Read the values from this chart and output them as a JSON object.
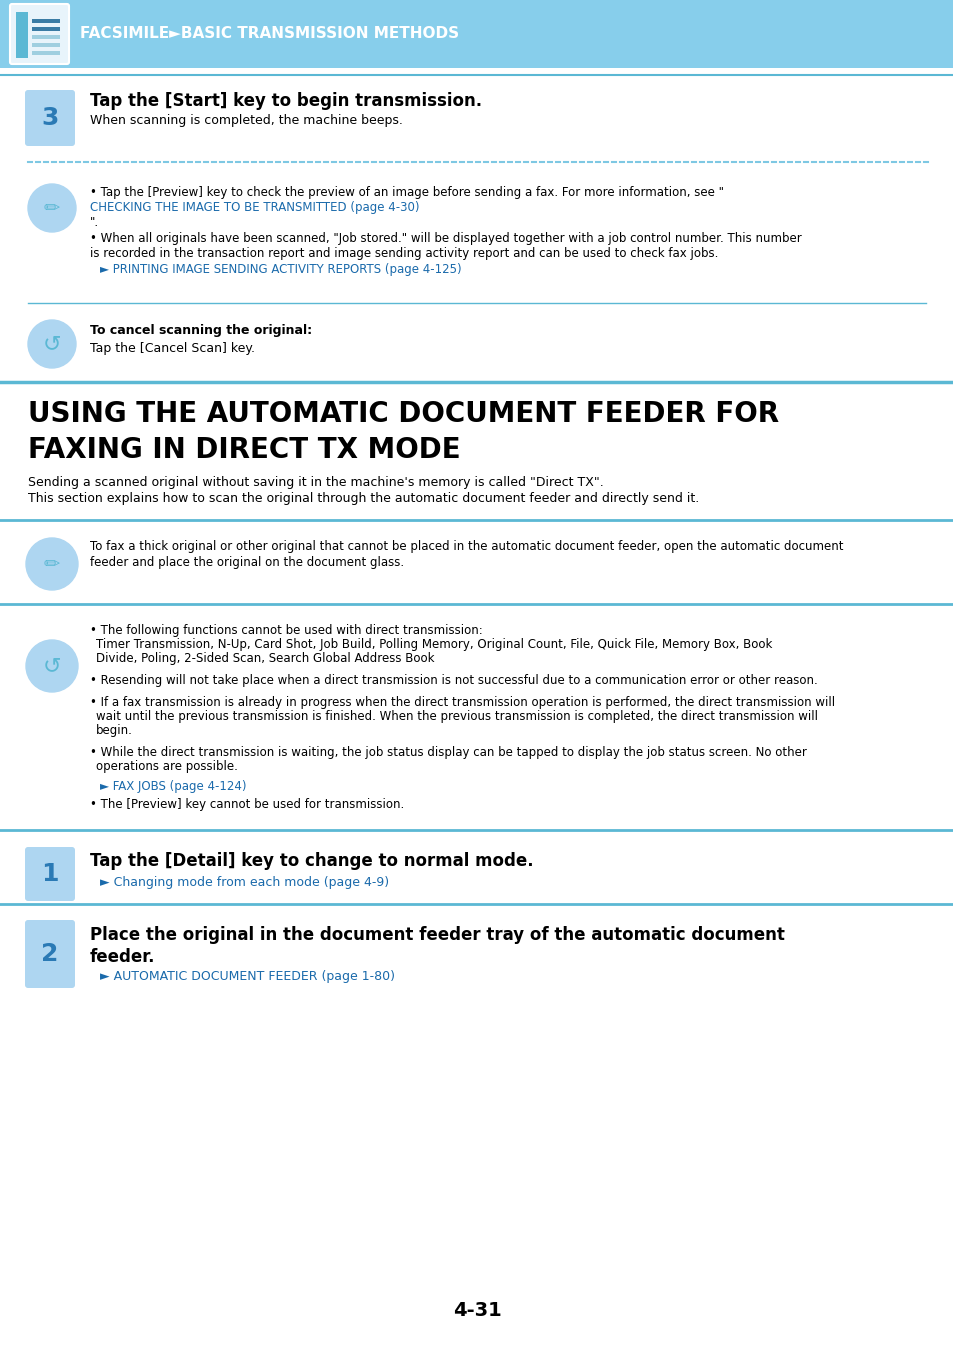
{
  "header_bg_color": "#87CEEB",
  "header_text": "FACSIMILE►BASIC TRANSMISSION METHODS",
  "header_text_color": "#FFFFFF",
  "page_bg_color": "#FFFFFF",
  "body_text_color": "#000000",
  "link_color": "#1a6aab",
  "blue_line_color": "#5BB8D4",
  "dashed_line_color": "#7EC8E3",
  "step3_bg": "#AED6F1",
  "step3_number": "3",
  "step3_title": "Tap the [Start] key to begin transmission.",
  "step3_body": "When scanning is completed, the machine beeps.",
  "note1_arrow_link": "PRINTING IMAGE SENDING ACTIVITY REPORTS (page 4-125)",
  "cancel_bold": "To cancel scanning the original:",
  "cancel_body": "Tap the [Cancel Scan] key.",
  "section_title_line1": "USING THE AUTOMATIC DOCUMENT FEEDER FOR",
  "section_title_line2": "FAXING IN DIRECT TX MODE",
  "section_body_line1": "Sending a scanned original without saving it in the machine's memory is called \"Direct TX\".",
  "section_body_line2": "This section explains how to scan the original through the automatic document feeder and directly send it.",
  "note3_bullets": [
    "The following functions cannot be used with direct transmission:\nTimer Transmission, N-Up, Card Shot, Job Build, Polling Memory, Original Count, File, Quick File, Memory Box, Book\nDivide, Poling, 2-Sided Scan, Search Global Address Book",
    "Resending will not take place when a direct transmission is not successful due to a communication error or other reason.",
    "If a fax transmission is already in progress when the direct transmission operation is performed, the direct transmission will\nwait until the previous transmission is finished. When the previous transmission is completed, the direct transmission will\nbegin.",
    "While the direct transmission is waiting, the job status display can be tapped to display the job status screen. No other\noperations are possible."
  ],
  "note3_arrow_link": "FAX JOBS (page 4-124)",
  "note3_last_bullet": "The [Preview] key cannot be used for transmission.",
  "step1_bg": "#AED6F1",
  "step1_number": "1",
  "step1_title": "Tap the [Detail] key to change to normal mode.",
  "step1_link": "Changing mode from each mode (page 4-9)",
  "step2_bg": "#AED6F1",
  "step2_number": "2",
  "step2_title_line1": "Place the original in the document feeder tray of the automatic document",
  "step2_title_line2": "feeder.",
  "step2_link": "AUTOMATIC DOCUMENT FEEDER (page 1-80)",
  "page_number": "4-31"
}
